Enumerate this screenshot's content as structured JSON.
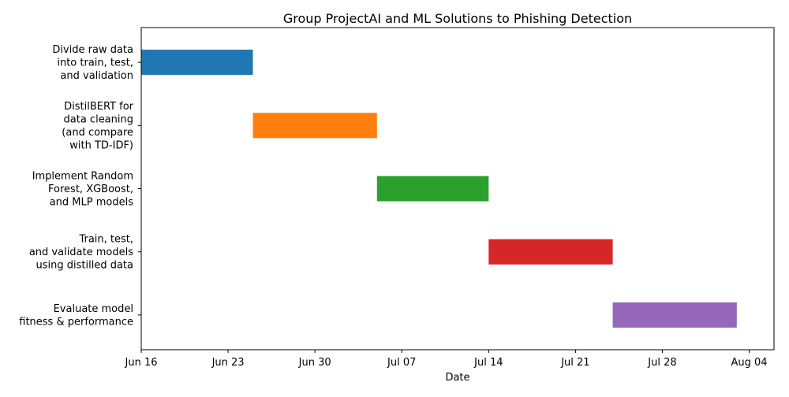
{
  "chart_data": {
    "type": "gantt",
    "title": "Group ProjectAI and ML Solutions to Phishing Detection",
    "xlabel": "Date",
    "ylabel": "",
    "xlim": [
      "2024-06-16",
      "2024-08-06"
    ],
    "x_ticks": [
      {
        "date": "2024-06-16",
        "label": "Jun 16"
      },
      {
        "date": "2024-06-23",
        "label": "Jun 23"
      },
      {
        "date": "2024-06-30",
        "label": "Jun 30"
      },
      {
        "date": "2024-07-07",
        "label": "Jul 07"
      },
      {
        "date": "2024-07-14",
        "label": "Jul 14"
      },
      {
        "date": "2024-07-21",
        "label": "Jul 21"
      },
      {
        "date": "2024-07-28",
        "label": "Jul 28"
      },
      {
        "date": "2024-08-04",
        "label": "Aug 04"
      }
    ],
    "tasks": [
      {
        "label_lines": [
          "Divide raw data",
          "into train, test,",
          "and validation"
        ],
        "start": "2024-06-16",
        "end": "2024-06-25",
        "color": "#1f77b4"
      },
      {
        "label_lines": [
          "DistilBERT for",
          "data cleaning",
          "(and compare",
          "with TD-IDF)"
        ],
        "start": "2024-06-25",
        "end": "2024-07-05",
        "color": "#ff7f0e"
      },
      {
        "label_lines": [
          "Implement Random",
          "Forest, XGBoost,",
          "and MLP models"
        ],
        "start": "2024-07-05",
        "end": "2024-07-14",
        "color": "#2ca02c"
      },
      {
        "label_lines": [
          "Train, test,",
          "and validate models",
          "using distilled data"
        ],
        "start": "2024-07-14",
        "end": "2024-07-24",
        "color": "#d62728"
      },
      {
        "label_lines": [
          "Evaluate model",
          "fitness & performance"
        ],
        "start": "2024-07-24",
        "end": "2024-08-03",
        "color": "#9467bd"
      }
    ],
    "grid": false,
    "legend": "none"
  }
}
